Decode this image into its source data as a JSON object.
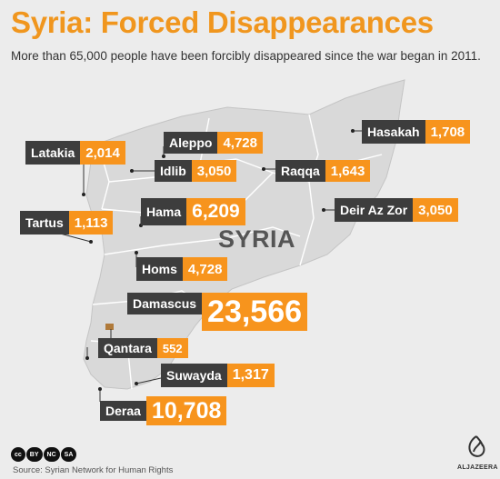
{
  "header": {
    "title": "Syria: Forced Disappearances",
    "subtitle": "More than 65,000 people have been forcibly disappeared since the war began in 2011."
  },
  "map": {
    "country_label": "SYRIA",
    "land_color": "#d9d9d9",
    "border_color": "#ffffff",
    "value_color": "#f7941d",
    "name_color": "#3d3d3d"
  },
  "provinces": [
    {
      "name": "Latakia",
      "value": "2,014"
    },
    {
      "name": "Aleppo",
      "value": "4,728"
    },
    {
      "name": "Idlib",
      "value": "3,050"
    },
    {
      "name": "Raqqa",
      "value": "1,643"
    },
    {
      "name": "Hasakah",
      "value": "1,708"
    },
    {
      "name": "Tartus",
      "value": "1,113"
    },
    {
      "name": "Hama",
      "value": "6,209"
    },
    {
      "name": "Deir Az Zor",
      "value": "3,050"
    },
    {
      "name": "Homs",
      "value": "4,728"
    },
    {
      "name": "Damascus",
      "value": "23,566"
    },
    {
      "name": "Qantara",
      "value": "552"
    },
    {
      "name": "Suwayda",
      "value": "1,317"
    },
    {
      "name": "Deraa",
      "value": "10,708"
    }
  ],
  "footer": {
    "source": "Source: Syrian Network for Human Rights",
    "license_badges": [
      "cc",
      "BY",
      "NC",
      "SA"
    ],
    "logo_icon": "al-jazeera-logo-icon",
    "logo_text": "ALJAZEERA"
  }
}
